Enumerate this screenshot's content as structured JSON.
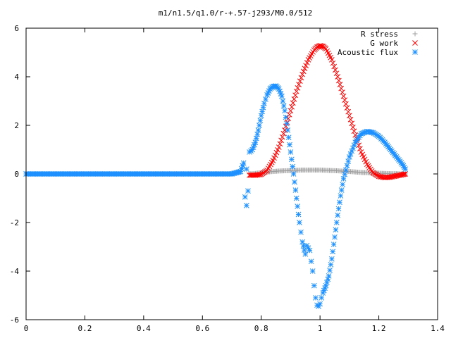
{
  "chart_data": {
    "type": "scatter",
    "title": "m1/n1.5/q1.0/r-+.57-j293/M0.0/512",
    "xlabel": "",
    "ylabel": "",
    "xlim": [
      0,
      1.4
    ],
    "ylim": [
      -6,
      6
    ],
    "x_ticks": [
      "0",
      "0.2",
      "0.4",
      "0.6",
      "0.8",
      "1",
      "1.2",
      "1.4"
    ],
    "y_ticks": [
      "6",
      "4",
      "2",
      "0",
      "-2",
      "-4",
      "-6"
    ],
    "grid": false,
    "legend_position": "top-right",
    "series": [
      {
        "name": "R stress",
        "marker": "plus",
        "color": "#a0a0a0",
        "x": [
          0.76,
          0.78,
          0.8,
          0.82,
          0.84,
          0.86,
          0.88,
          0.9,
          0.92,
          0.94,
          0.96,
          0.98,
          1.0,
          1.02,
          1.04,
          1.06,
          1.08,
          1.1,
          1.12,
          1.14,
          1.16,
          1.18,
          1.2,
          1.22,
          1.24,
          1.26,
          1.28,
          1.29
        ],
        "y": [
          0.0,
          0.02,
          0.05,
          0.08,
          0.1,
          0.12,
          0.13,
          0.14,
          0.15,
          0.16,
          0.16,
          0.16,
          0.16,
          0.15,
          0.14,
          0.13,
          0.11,
          0.1,
          0.08,
          0.06,
          0.05,
          0.04,
          0.03,
          0.02,
          0.01,
          0.01,
          0.0,
          0.0
        ]
      },
      {
        "name": "G work",
        "marker": "cross",
        "color": "#ff0000",
        "x": [
          0.76,
          0.78,
          0.8,
          0.82,
          0.84,
          0.86,
          0.88,
          0.9,
          0.92,
          0.94,
          0.96,
          0.98,
          0.99,
          1.0,
          1.01,
          1.02,
          1.04,
          1.06,
          1.08,
          1.1,
          1.12,
          1.14,
          1.16,
          1.18,
          1.2,
          1.22,
          1.24,
          1.26,
          1.28,
          1.29
        ],
        "y": [
          -0.05,
          -0.05,
          -0.02,
          0.15,
          0.55,
          1.1,
          1.8,
          2.6,
          3.4,
          4.1,
          4.7,
          5.1,
          5.22,
          5.28,
          5.25,
          5.15,
          4.7,
          4.0,
          3.2,
          2.4,
          1.6,
          0.9,
          0.4,
          0.05,
          -0.1,
          -0.15,
          -0.13,
          -0.08,
          -0.03,
          0.0
        ]
      },
      {
        "name": "Acoustic flux",
        "marker": "star",
        "color": "#1e90ff",
        "x": [
          0.0,
          0.1,
          0.2,
          0.3,
          0.4,
          0.5,
          0.6,
          0.7,
          0.73,
          0.74,
          0.745,
          0.75,
          0.75,
          0.755,
          0.76,
          0.765,
          0.77,
          0.78,
          0.79,
          0.8,
          0.81,
          0.82,
          0.83,
          0.84,
          0.85,
          0.86,
          0.87,
          0.88,
          0.89,
          0.9,
          0.91,
          0.92,
          0.93,
          0.94,
          0.95,
          0.955,
          0.96,
          0.965,
          0.97,
          0.975,
          0.98,
          0.985,
          0.99,
          0.995,
          1.0,
          1.005,
          1.01,
          1.02,
          1.03,
          1.04,
          1.05,
          1.06,
          1.07,
          1.08,
          1.1,
          1.12,
          1.14,
          1.16,
          1.18,
          1.2,
          1.22,
          1.24,
          1.26,
          1.28,
          1.29
        ],
        "y": [
          0.0,
          0.0,
          0.0,
          0.0,
          0.0,
          0.0,
          0.0,
          0.0,
          0.1,
          0.45,
          -0.95,
          -1.3,
          0.2,
          -0.7,
          0.9,
          0.95,
          1.0,
          1.3,
          1.8,
          2.4,
          2.9,
          3.25,
          3.5,
          3.6,
          3.62,
          3.5,
          3.2,
          2.6,
          1.8,
          0.9,
          0.0,
          -1.0,
          -2.0,
          -2.8,
          -3.3,
          -2.95,
          -3.05,
          -3.15,
          -3.6,
          -4.0,
          -4.6,
          -5.1,
          -5.4,
          -5.45,
          -5.35,
          -5.1,
          -4.9,
          -4.6,
          -4.2,
          -3.5,
          -2.6,
          -1.7,
          -0.9,
          -0.2,
          0.7,
          1.3,
          1.65,
          1.75,
          1.7,
          1.55,
          1.3,
          1.0,
          0.7,
          0.4,
          0.2
        ]
      }
    ]
  }
}
